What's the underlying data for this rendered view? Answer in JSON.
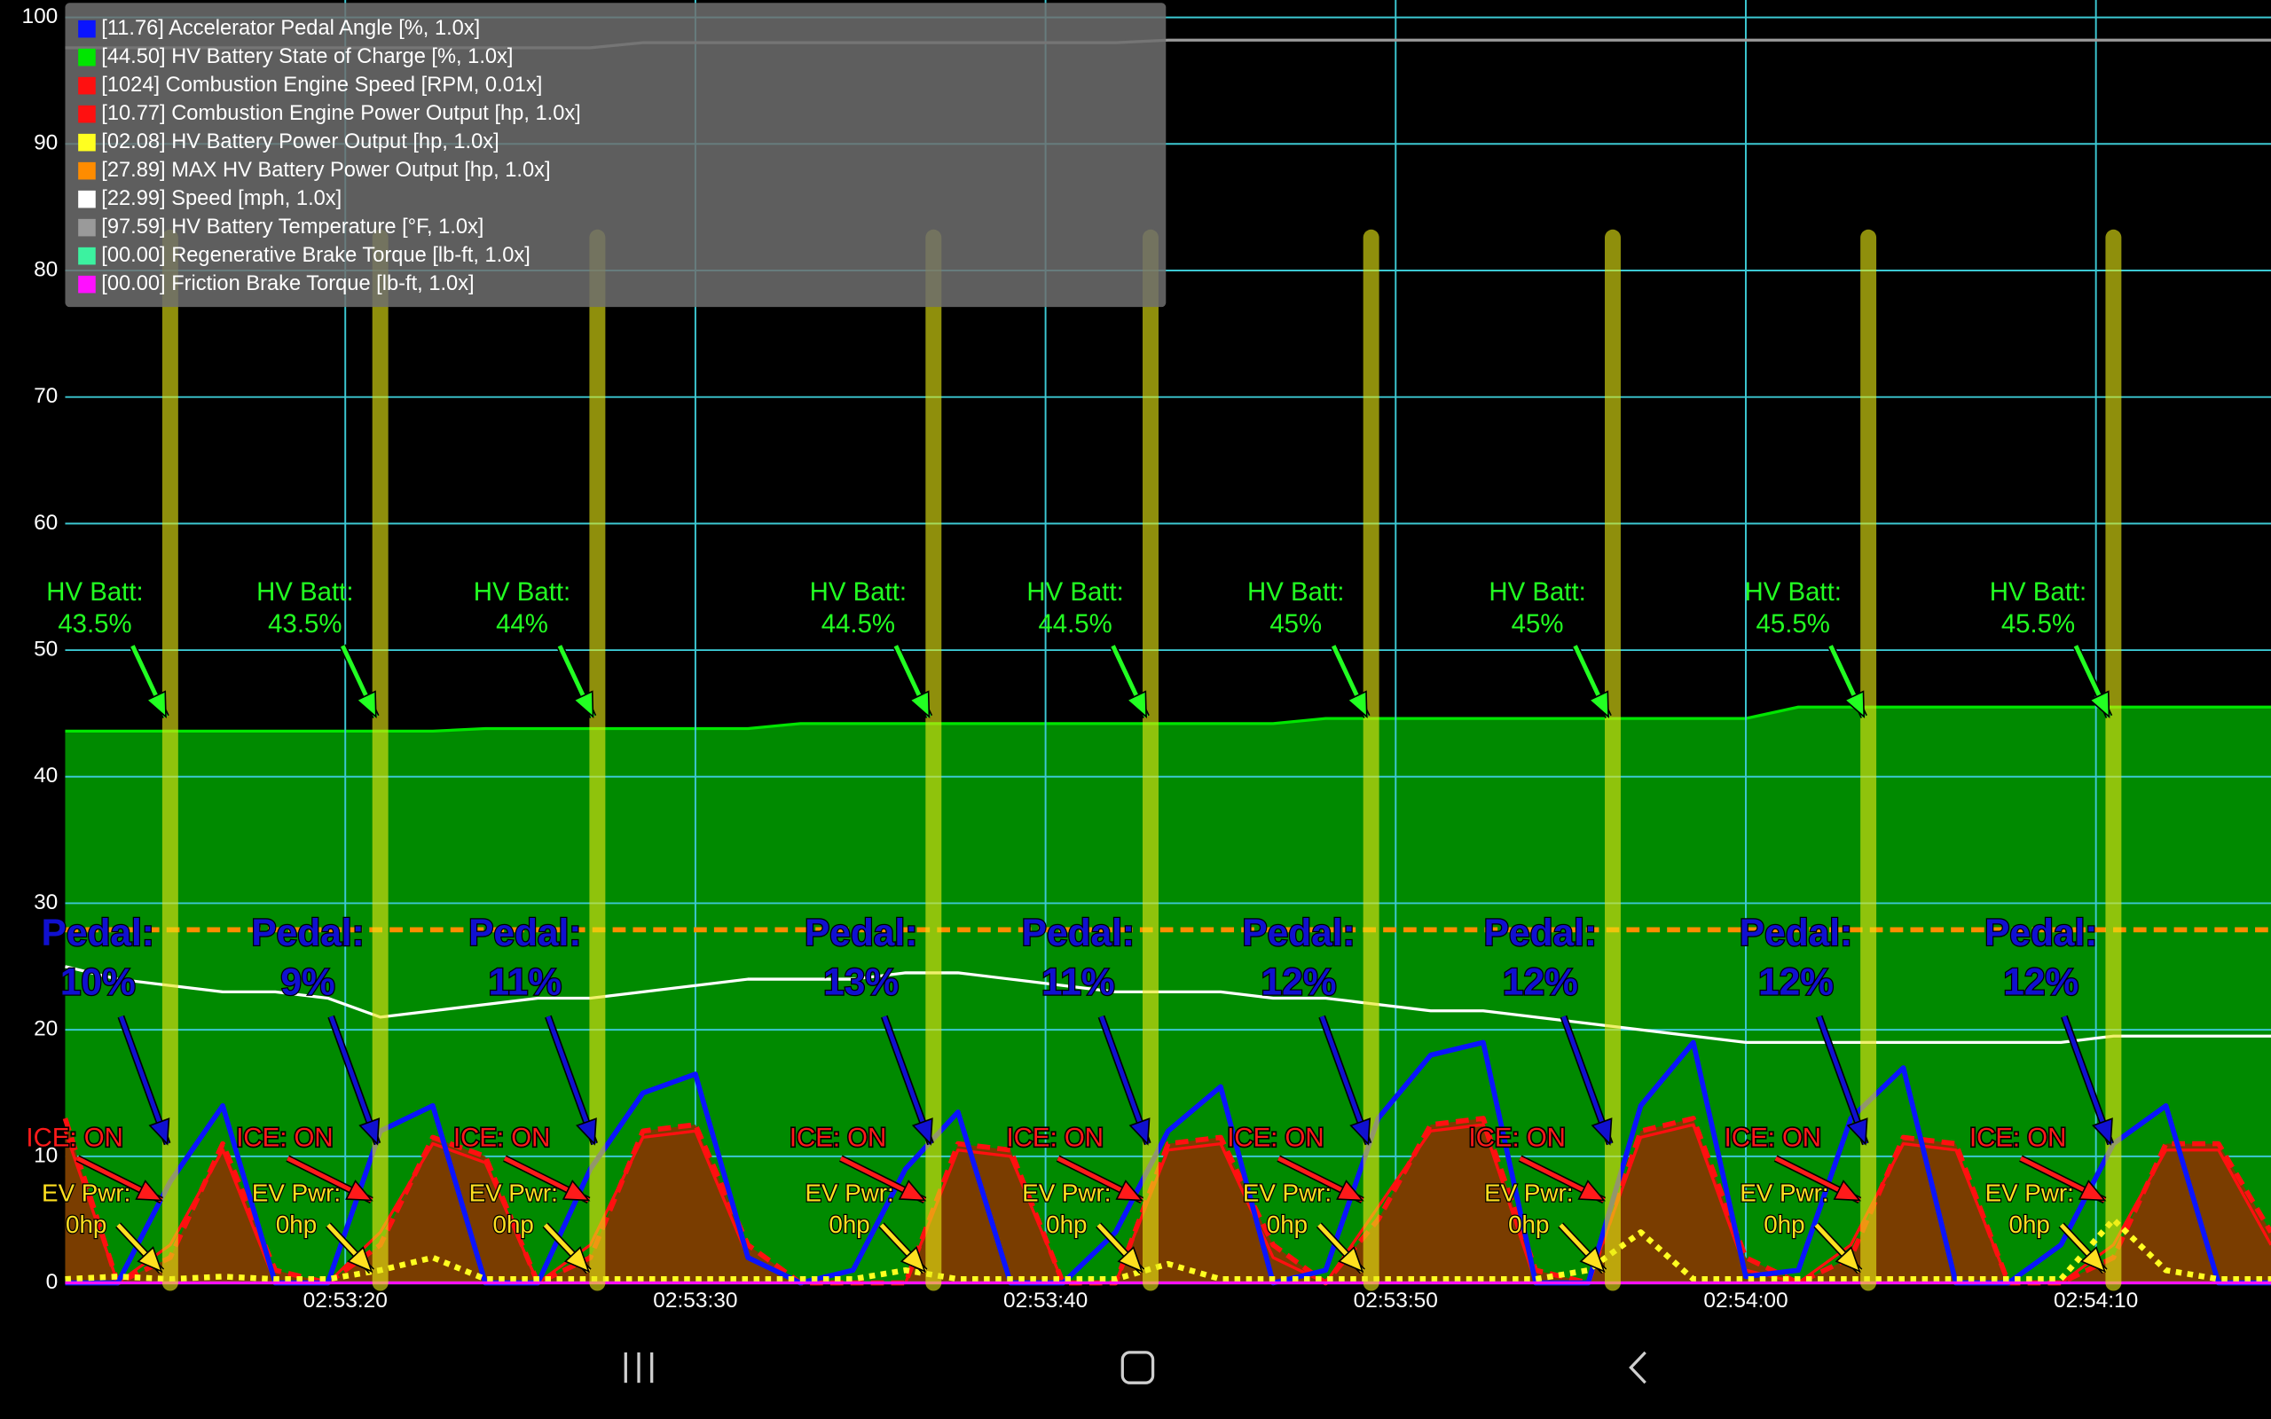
{
  "chart_data": {
    "type": "line",
    "x": [
      12,
      13.5,
      15,
      16.5,
      18,
      19.5,
      21,
      22.5,
      24,
      25.5,
      27,
      28.5,
      30,
      31.5,
      33,
      34.5,
      36,
      37.5,
      39,
      40.5,
      42,
      43.5,
      45,
      46.5,
      48,
      49.5,
      51,
      52.5,
      54,
      55.5,
      57,
      58.5,
      60,
      61.5,
      63,
      64.5,
      66,
      67.5,
      69,
      70.5,
      72,
      73.5,
      75
    ],
    "xlim": [
      12,
      75
    ],
    "xticks": [
      {
        "value": 20,
        "label": "02:53:20"
      },
      {
        "value": 30,
        "label": "02:53:30"
      },
      {
        "value": 40,
        "label": "02:53:40"
      },
      {
        "value": 50,
        "label": "02:53:50"
      },
      {
        "value": 60,
        "label": "02:54:00"
      },
      {
        "value": 70,
        "label": "02:54:10"
      }
    ],
    "ylim": [
      0,
      100
    ],
    "yticks": [
      0,
      10,
      20,
      30,
      40,
      50,
      60,
      70,
      80,
      90,
      100
    ],
    "grid": true,
    "series": [
      {
        "name": "[11.76] Accelerator Pedal Angle [%, 1.0x]",
        "color": "#0a14ff",
        "style": "line",
        "values": [
          0,
          0,
          8,
          14,
          0,
          0,
          12,
          14,
          0,
          0,
          9,
          15,
          16.5,
          2,
          0,
          1,
          9,
          13.5,
          0,
          0,
          4,
          12,
          15.5,
          0,
          1,
          13,
          18,
          19,
          0,
          0,
          14,
          19,
          0.5,
          1,
          13,
          17,
          0,
          0,
          3,
          11,
          14,
          0,
          0
        ]
      },
      {
        "name": "[44.50] HV Battery State of Charge [%, 1.0x]",
        "color": "#00e600",
        "style": "area",
        "fill": "#008a00",
        "values": [
          43.6,
          43.6,
          43.6,
          43.6,
          43.6,
          43.6,
          43.6,
          43.6,
          43.8,
          43.8,
          43.8,
          43.8,
          43.8,
          43.8,
          44.2,
          44.2,
          44.2,
          44.2,
          44.2,
          44.2,
          44.2,
          44.2,
          44.2,
          44.2,
          44.6,
          44.6,
          44.6,
          44.6,
          44.6,
          44.6,
          44.6,
          44.6,
          44.6,
          45.5,
          45.5,
          45.5,
          45.5,
          45.5,
          45.5,
          45.5,
          45.5,
          45.5,
          45.5
        ]
      },
      {
        "name": "[1024] Combustion Engine Speed [RPM, 0.01x]",
        "color": "#ff1010",
        "style": "line",
        "values": [
          12,
          0,
          3,
          10.5,
          0,
          0,
          4,
          11,
          9.5,
          0,
          3,
          11.5,
          12,
          2,
          0,
          0,
          0,
          10.5,
          10,
          0,
          0,
          10.5,
          11,
          2,
          0,
          6,
          12,
          12.5,
          0,
          0,
          11.5,
          12.5,
          1,
          0,
          3,
          11,
          10.5,
          0,
          0,
          3,
          10.5,
          10.5,
          3
        ]
      },
      {
        "name": "[10.77] Combustion Engine Power Output [hp, 1.0x]",
        "color": "#ff1010",
        "style": "dashed",
        "fill": "#7a3d00",
        "values": [
          13,
          0,
          2,
          11,
          1,
          0,
          3,
          11.5,
          10,
          0,
          2,
          12,
          12.5,
          3,
          0,
          0,
          0,
          11,
          10.5,
          0,
          0,
          11,
          11.5,
          3,
          0,
          5,
          12.5,
          13,
          1,
          0,
          12,
          13,
          2,
          0,
          2,
          11.5,
          11,
          0,
          0,
          2,
          11,
          11,
          4
        ]
      },
      {
        "name": "[02.08] HV Battery Power Output [hp, 1.0x]",
        "color": "#ffff20",
        "style": "dotted",
        "values": [
          0.3,
          0.5,
          0.3,
          0.5,
          0.3,
          0.3,
          1,
          2,
          0.3,
          0.3,
          0.3,
          0.3,
          0.3,
          0.3,
          0.3,
          0.3,
          1,
          0.3,
          0.3,
          0.3,
          0.3,
          1.5,
          0.3,
          0.3,
          0.3,
          0.3,
          0.3,
          0.3,
          0.3,
          1,
          4,
          0.3,
          0.3,
          0.3,
          0.3,
          0.3,
          0.3,
          0.3,
          0.3,
          5,
          1,
          0.3,
          0.3
        ]
      },
      {
        "name": "[27.89] MAX HV Battery Power Output [hp, 1.0x]",
        "color": "#ff8c00",
        "style": "dashed",
        "values": [
          27.9,
          27.9,
          27.9,
          27.9,
          27.9,
          27.9,
          27.9,
          27.9,
          27.9,
          27.9,
          27.9,
          27.9,
          27.9,
          27.9,
          27.9,
          27.9,
          27.9,
          27.9,
          27.9,
          27.9,
          27.9,
          27.9,
          27.9,
          27.9,
          27.9,
          27.9,
          27.9,
          27.9,
          27.9,
          27.9,
          27.9,
          27.9,
          27.9,
          27.9,
          27.9,
          27.9,
          27.9,
          27.9,
          27.9,
          27.9,
          27.9,
          27.9,
          27.9
        ]
      },
      {
        "name": "[22.99] Speed [mph, 1.0x]",
        "color": "#ffffff",
        "style": "line",
        "values": [
          25,
          24,
          23.5,
          23,
          23,
          22.5,
          21,
          21.5,
          22,
          22.5,
          22.5,
          23,
          23.5,
          24,
          24,
          24,
          24.5,
          24.5,
          24,
          23.5,
          23,
          23,
          23,
          22.5,
          22.5,
          22,
          21.5,
          21.5,
          21,
          20.5,
          20,
          19.5,
          19,
          19,
          19,
          19,
          19,
          19,
          19,
          19.5,
          19.5,
          19.5,
          19.5
        ]
      },
      {
        "name": "[97.59] HV Battery Temperature [°F, 1.0x]",
        "color": "#9a9a9a",
        "style": "line",
        "values": [
          97.6,
          97.6,
          97.6,
          97.6,
          97.6,
          97.6,
          97.6,
          97.6,
          97.6,
          97.6,
          97.6,
          98,
          98,
          98,
          98,
          98,
          98,
          98,
          98,
          98,
          98,
          98.2,
          98.2,
          98.2,
          98.2,
          98.2,
          98.2,
          98.2,
          98.2,
          98.2,
          98.2,
          98.2,
          98.2,
          98.2,
          98.2,
          98.2,
          98.2,
          98.2,
          98.2,
          98.2,
          98.2,
          98.2,
          98.2
        ]
      },
      {
        "name": "[00.00] Regenerative Brake Torque [lb-ft, 1.0x]",
        "color": "#3cf2a0",
        "style": "line",
        "values": [
          0,
          0,
          0,
          0,
          0,
          0,
          0,
          0,
          0,
          0,
          0,
          0,
          0,
          0,
          0,
          0,
          0,
          0,
          0,
          0,
          0,
          0,
          0,
          0,
          0,
          0,
          0,
          0,
          0,
          0,
          0,
          0,
          0,
          0,
          0,
          0,
          0,
          0,
          0,
          0,
          0,
          0,
          0
        ]
      },
      {
        "name": "[00.00] Friction Brake Torque [lb-ft, 1.0x]",
        "color": "#ff10ff",
        "style": "line",
        "values": [
          0,
          0,
          0,
          0,
          0,
          0,
          0,
          0,
          0,
          0,
          0,
          0,
          0,
          0,
          0,
          0,
          0,
          0,
          0,
          0,
          0,
          0,
          0,
          0,
          0,
          0,
          0,
          0,
          0,
          0,
          0,
          0,
          0,
          0,
          0,
          0,
          0,
          0,
          0,
          0,
          0,
          0,
          0
        ]
      }
    ],
    "annotations": [
      {
        "x": 15.0,
        "batt": [
          "HV Batt:",
          "43.5%"
        ],
        "pedal": [
          "Pedal:",
          "10%"
        ],
        "ice": "ICE: ON",
        "ev": [
          "EV Pwr:",
          "0hp"
        ]
      },
      {
        "x": 21.0,
        "batt": [
          "HV Batt:",
          "43.5%"
        ],
        "pedal": [
          "Pedal:",
          "9%"
        ],
        "ice": "ICE: ON",
        "ev": [
          "EV Pwr:",
          "0hp"
        ]
      },
      {
        "x": 27.2,
        "batt": [
          "HV Batt:",
          "44%"
        ],
        "pedal": [
          "Pedal:",
          "11%"
        ],
        "ice": "ICE: ON",
        "ev": [
          "EV Pwr:",
          "0hp"
        ]
      },
      {
        "x": 36.8,
        "batt": [
          "HV Batt:",
          "44.5%"
        ],
        "pedal": [
          "Pedal:",
          "13%"
        ],
        "ice": "ICE: ON",
        "ev": [
          "EV Pwr:",
          "0hp"
        ]
      },
      {
        "x": 43.0,
        "batt": [
          "HV Batt:",
          "44.5%"
        ],
        "pedal": [
          "Pedal:",
          "11%"
        ],
        "ice": "ICE: ON",
        "ev": [
          "EV Pwr:",
          "0hp"
        ]
      },
      {
        "x": 49.3,
        "batt": [
          "HV Batt:",
          "45%"
        ],
        "pedal": [
          "Pedal:",
          "12%"
        ],
        "ice": "ICE: ON",
        "ev": [
          "EV Pwr:",
          "0hp"
        ]
      },
      {
        "x": 56.2,
        "batt": [
          "HV Batt:",
          "45%"
        ],
        "pedal": [
          "Pedal:",
          "12%"
        ],
        "ice": "ICE: ON",
        "ev": [
          "EV Pwr:",
          "0hp"
        ]
      },
      {
        "x": 63.5,
        "batt": [
          "HV Batt:",
          "45.5%"
        ],
        "pedal": [
          "Pedal:",
          "12%"
        ],
        "ice": "ICE: ON",
        "ev": [
          "EV Pwr:",
          "0hp"
        ]
      },
      {
        "x": 70.5,
        "batt": [
          "HV Batt:",
          "45.5%"
        ],
        "pedal": [
          "Pedal:",
          "12%"
        ],
        "ice": "ICE: ON",
        "ev": [
          "EV Pwr:",
          "0hp"
        ]
      }
    ]
  }
}
